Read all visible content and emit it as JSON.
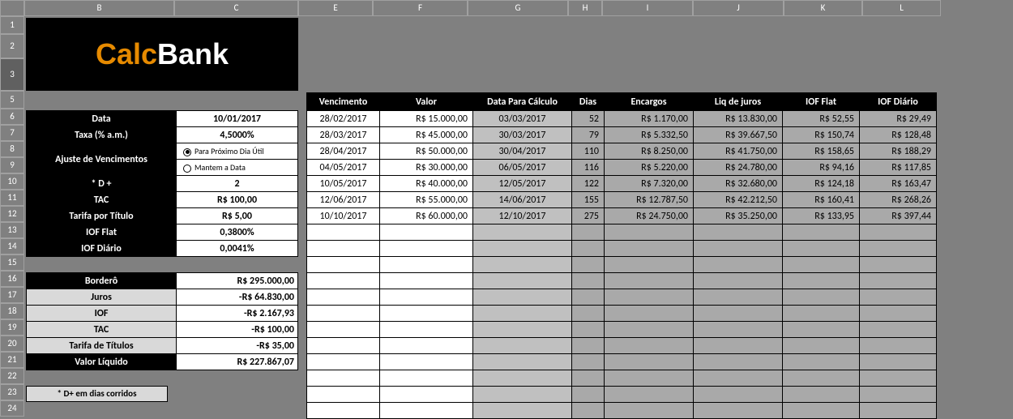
{
  "logo": {
    "part1": "Calc",
    "part2": "Bank"
  },
  "columns": {
    "letters": [
      "B",
      "C",
      "E",
      "F",
      "G",
      "H",
      "I",
      "J",
      "K",
      "L"
    ],
    "widths": [
      30,
      185,
      153,
      92,
      117,
      124,
      42,
      112,
      112,
      97,
      97
    ]
  },
  "row_numbers": [
    1,
    2,
    3,
    5,
    6,
    7,
    8,
    9,
    10,
    11,
    12,
    13,
    14,
    15,
    16,
    17,
    18,
    19,
    20,
    21,
    22,
    23,
    24
  ],
  "row_heights": {
    "default": 20,
    "r1": 22,
    "r2": 30,
    "r3": 40,
    "r5": 22
  },
  "params": [
    {
      "label": "Data",
      "value": "10/01/2017",
      "style": "center"
    },
    {
      "label": "Taxa (% a.m.)",
      "value": "4,5000%",
      "style": "center"
    }
  ],
  "ajuste_label": "Ajuste de Vencimentos",
  "ajuste_options": [
    {
      "label": "Para Próximo Dia Útil",
      "selected": true
    },
    {
      "label": "Mantem a Data",
      "selected": false
    }
  ],
  "params2": [
    {
      "label": "* D +",
      "value": "2",
      "style": "center"
    },
    {
      "label": "TAC",
      "value": "R$ 100,00",
      "style": "center"
    },
    {
      "label": "Tarifa por Título",
      "value": "R$ 5,00",
      "style": "center"
    },
    {
      "label": "IOF Flat",
      "value": "0,3800%",
      "style": "center"
    },
    {
      "label": "IOF Diário",
      "value": "0,0041%",
      "style": "center"
    }
  ],
  "summary": [
    {
      "label": "Borderô",
      "value": "R$ 295.000,00",
      "dark": true
    },
    {
      "label": "Juros",
      "value": "-R$ 64.830,00",
      "dark": false
    },
    {
      "label": "IOF",
      "value": "-R$ 2.167,93",
      "dark": false
    },
    {
      "label": "TAC",
      "value": "-R$ 100,00",
      "dark": false
    },
    {
      "label": "Tarifa de Títulos",
      "value": "-R$ 35,00",
      "dark": false
    },
    {
      "label": "Valor Líquido",
      "value": "R$ 227.867,07",
      "dark": true
    }
  ],
  "note": "* D+ em dias corridos",
  "table": {
    "headers": [
      "Vencimento",
      "Valor",
      "Data Para Cálculo",
      "Dias",
      "Encargos",
      "Liq de juros",
      "IOF Flat",
      "IOF Diário"
    ],
    "rows": [
      [
        "28/02/2017",
        "R$ 15.000,00",
        "03/03/2017",
        "52",
        "R$ 1.170,00",
        "R$ 13.830,00",
        "R$ 52,55",
        "R$ 29,49"
      ],
      [
        "28/03/2017",
        "R$ 45.000,00",
        "30/03/2017",
        "79",
        "R$ 5.332,50",
        "R$ 39.667,50",
        "R$ 150,74",
        "R$ 128,48"
      ],
      [
        "28/04/2017",
        "R$ 50.000,00",
        "30/04/2017",
        "110",
        "R$ 8.250,00",
        "R$ 41.750,00",
        "R$ 158,65",
        "R$ 188,29"
      ],
      [
        "04/05/2017",
        "R$ 30.000,00",
        "06/05/2017",
        "116",
        "R$ 5.220,00",
        "R$ 24.780,00",
        "R$ 94,16",
        "R$ 117,85"
      ],
      [
        "10/05/2017",
        "R$ 40.000,00",
        "12/05/2017",
        "122",
        "R$ 7.320,00",
        "R$ 32.680,00",
        "R$ 124,18",
        "R$ 163,47"
      ],
      [
        "12/06/2017",
        "R$ 55.000,00",
        "14/06/2017",
        "155",
        "R$ 12.787,50",
        "R$ 42.212,50",
        "R$ 160,41",
        "R$ 268,26"
      ],
      [
        "10/10/2017",
        "R$ 60.000,00",
        "12/10/2017",
        "275",
        "R$ 24.750,00",
        "R$ 35.250,00",
        "R$ 133,95",
        "R$ 397,44"
      ]
    ],
    "empty_rows": 12
  },
  "colors": {
    "bg": "#808080",
    "black": "#000000",
    "white": "#ffffff",
    "gray_light": "#d9d9d9",
    "gray_mid": "#c0c0c0",
    "gray_dark": "#a9a9a9",
    "orange": "#e68a00"
  }
}
